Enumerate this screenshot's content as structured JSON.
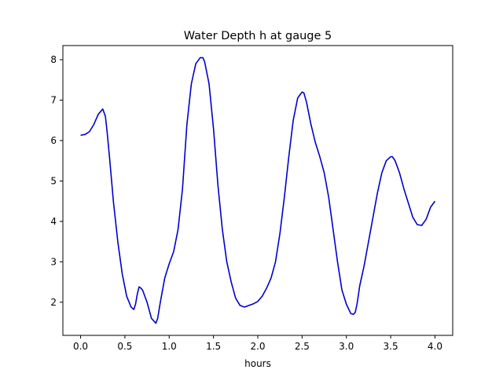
{
  "chart_data": {
    "type": "line",
    "title": "Water Depth h at gauge 5",
    "xlabel": "hours",
    "ylabel": "",
    "xlim": [
      -0.2,
      4.2
    ],
    "ylim": [
      1.18,
      8.35
    ],
    "xticks": [
      "0.0",
      "0.5",
      "1.0",
      "1.5",
      "2.0",
      "2.5",
      "3.0",
      "3.5",
      "4.0"
    ],
    "yticks": [
      "2",
      "3",
      "4",
      "5",
      "6",
      "7",
      "8"
    ],
    "grid": false,
    "series": [
      {
        "color": "#0000cc",
        "x": [
          0.0,
          0.05,
          0.1,
          0.15,
          0.2,
          0.25,
          0.28,
          0.3,
          0.33,
          0.37,
          0.42,
          0.47,
          0.52,
          0.57,
          0.6,
          0.62,
          0.64,
          0.66,
          0.68,
          0.7,
          0.75,
          0.8,
          0.85,
          0.87,
          0.9,
          0.95,
          1.0,
          1.05,
          1.1,
          1.15,
          1.2,
          1.25,
          1.3,
          1.35,
          1.38,
          1.4,
          1.45,
          1.5,
          1.55,
          1.6,
          1.65,
          1.7,
          1.75,
          1.8,
          1.85,
          1.9,
          1.95,
          2.0,
          2.05,
          2.1,
          2.15,
          2.2,
          2.25,
          2.3,
          2.35,
          2.4,
          2.45,
          2.5,
          2.52,
          2.55,
          2.6,
          2.65,
          2.7,
          2.75,
          2.8,
          2.85,
          2.9,
          2.95,
          3.0,
          3.05,
          3.08,
          3.1,
          3.12,
          3.15,
          3.2,
          3.25,
          3.3,
          3.35,
          3.4,
          3.45,
          3.5,
          3.52,
          3.55,
          3.6,
          3.65,
          3.7,
          3.75,
          3.8,
          3.85,
          3.9,
          3.95,
          4.0
        ],
        "y": [
          6.13,
          6.15,
          6.22,
          6.4,
          6.65,
          6.78,
          6.6,
          6.2,
          5.5,
          4.5,
          3.5,
          2.7,
          2.15,
          1.88,
          1.82,
          1.95,
          2.2,
          2.38,
          2.35,
          2.3,
          2.0,
          1.6,
          1.48,
          1.6,
          2.0,
          2.6,
          2.95,
          3.25,
          3.8,
          4.8,
          6.4,
          7.4,
          7.9,
          8.05,
          8.05,
          7.95,
          7.4,
          6.3,
          4.9,
          3.8,
          3.0,
          2.5,
          2.1,
          1.92,
          1.88,
          1.92,
          1.96,
          2.02,
          2.15,
          2.35,
          2.6,
          3.0,
          3.7,
          4.6,
          5.6,
          6.5,
          7.05,
          7.2,
          7.18,
          6.95,
          6.4,
          5.95,
          5.6,
          5.2,
          4.6,
          3.8,
          3.0,
          2.3,
          1.95,
          1.72,
          1.7,
          1.75,
          1.95,
          2.4,
          2.9,
          3.5,
          4.1,
          4.7,
          5.2,
          5.5,
          5.6,
          5.6,
          5.5,
          5.2,
          4.8,
          4.45,
          4.1,
          3.92,
          3.9,
          4.05,
          4.35,
          4.5
        ]
      }
    ]
  }
}
